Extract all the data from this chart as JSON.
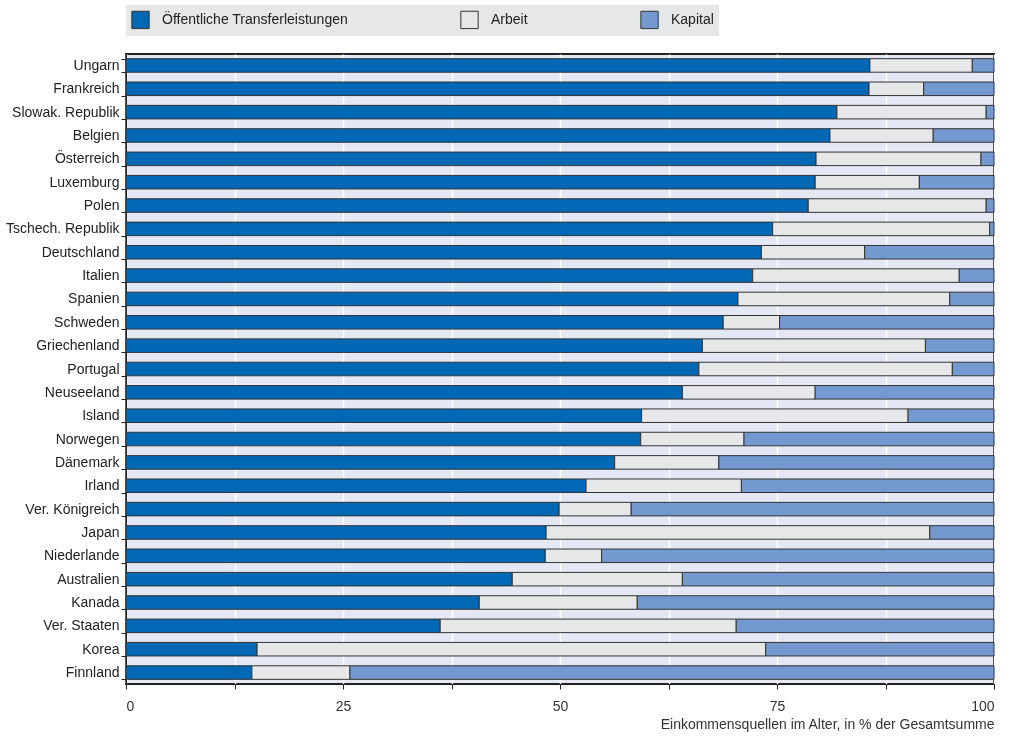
{
  "chart_data": {
    "type": "bar",
    "orientation": "horizontal",
    "stacked": true,
    "xlabel": "Einkommensquellen im Alter, in % der Gesamtsumme",
    "categories": [
      "Ungarn",
      "Frankreich",
      "Slowak. Republik",
      "Belgien",
      "Österreich",
      "Luxemburg",
      "Polen",
      "Tschech. Republik",
      "Deutschland",
      "Italien",
      "Spanien",
      "Schweden",
      "Griechenland",
      "Portugal",
      "Neuseeland",
      "Island",
      "Norwegen",
      "Dänemark",
      "Irland",
      "Ver. Königreich",
      "Japan",
      "Niederlande",
      "Australien",
      "Kanada",
      "Ver. Staaten",
      "Korea",
      "Finnland"
    ],
    "series": [
      {
        "name": "Öffentliche Transferleistungen",
        "color": "#0068b4",
        "values": [
          85.7,
          85.6,
          81.9,
          81.1,
          79.5,
          79.4,
          78.6,
          74.5,
          73.2,
          72.2,
          70.5,
          68.8,
          66.4,
          66.0,
          64.1,
          59.4,
          59.3,
          56.3,
          53.0,
          49.9,
          48.4,
          48.3,
          44.5,
          40.7,
          36.2,
          15.1,
          14.5
        ]
      },
      {
        "name": "Arbeit",
        "color": "#e6e7e8",
        "values": [
          11.8,
          6.3,
          17.2,
          11.9,
          19.0,
          12.0,
          20.5,
          25.0,
          11.9,
          23.8,
          24.4,
          6.5,
          25.7,
          29.2,
          15.3,
          30.7,
          11.9,
          12.0,
          17.9,
          8.3,
          44.2,
          6.5,
          19.6,
          18.2,
          34.1,
          58.6,
          11.3
        ]
      },
      {
        "name": "Kapital",
        "color": "#7399d0",
        "values": [
          2.5,
          8.1,
          0.9,
          7.0,
          1.5,
          8.6,
          0.9,
          0.5,
          14.9,
          4.0,
          5.1,
          24.7,
          7.9,
          4.8,
          20.6,
          9.9,
          28.8,
          31.7,
          29.1,
          41.8,
          7.4,
          45.2,
          35.9,
          41.1,
          29.7,
          26.3,
          74.2
        ]
      }
    ],
    "xlim": [
      0,
      100
    ],
    "xticks": [
      0,
      {
        "value": 12.5,
        "label": null
      },
      25,
      {
        "value": 37.5,
        "label": null
      },
      50,
      {
        "value": 62.5,
        "label": null
      },
      75,
      {
        "value": 87.5,
        "label": null
      },
      100
    ],
    "grid": "x",
    "legend": "top"
  }
}
